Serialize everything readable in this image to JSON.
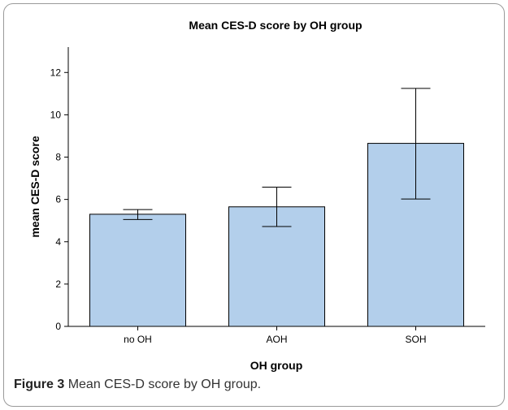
{
  "chart_data": {
    "type": "bar",
    "title": "Mean CES-D score by OH group",
    "xlabel": "OH group",
    "ylabel": "mean CES-D score",
    "categories": [
      "no OH",
      "AOH",
      "SOH"
    ],
    "values": [
      5.3,
      5.65,
      8.65
    ],
    "error_bars": {
      "lower": [
        5.05,
        4.72,
        6.02
      ],
      "upper": [
        5.52,
        6.58,
        11.25
      ]
    },
    "ylim": [
      0,
      13.2
    ],
    "yticks": [
      0,
      2,
      4,
      6,
      8,
      10,
      12
    ],
    "grid": false,
    "legend": "none",
    "colors": {
      "bar_fill": "#b3cfeb",
      "bar_stroke": "#000000",
      "error_bar": "#000000"
    }
  },
  "caption": {
    "label": "Figure 3",
    "text": "Mean CES-D score by OH group."
  }
}
